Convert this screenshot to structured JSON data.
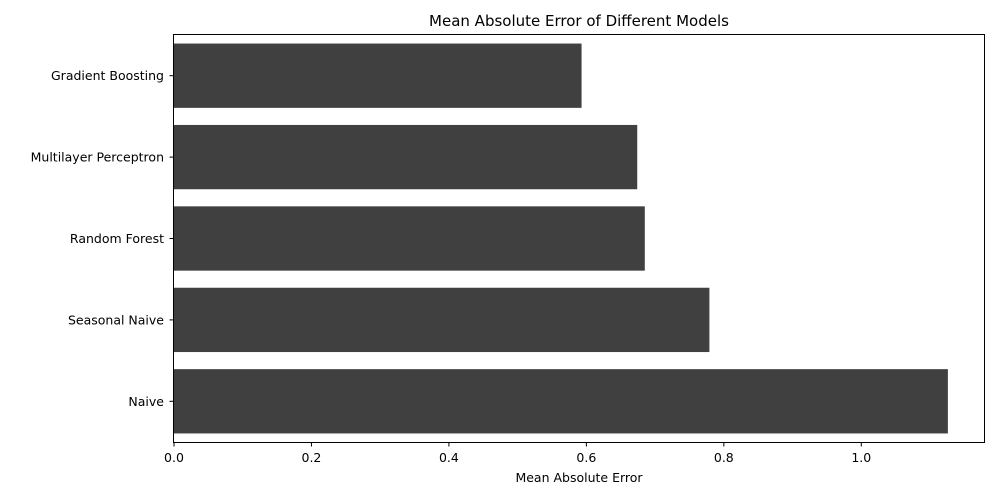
{
  "chart_data": {
    "type": "bar",
    "orientation": "horizontal",
    "title": "Mean Absolute Error of Different Models",
    "xlabel": "Mean Absolute Error",
    "ylabel": "",
    "categories": [
      "Gradient Boosting",
      "Multilayer Perceptron",
      "Random Forest",
      "Seasonal Naive",
      "Naive"
    ],
    "values": [
      0.593,
      0.674,
      0.685,
      0.779,
      1.126
    ],
    "xlim": [
      0,
      1.18
    ],
    "xticks": [
      0.0,
      0.2,
      0.4,
      0.6,
      0.8,
      1.0
    ],
    "xtick_labels": [
      "0.0",
      "0.2",
      "0.4",
      "0.6",
      "0.8",
      "1.0"
    ],
    "bar_color": "#404040",
    "grid": false,
    "legend": "none"
  }
}
